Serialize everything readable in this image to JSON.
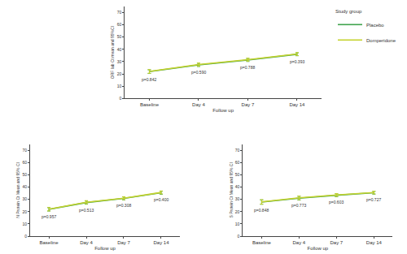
{
  "chart_data": [
    {
      "type": "line",
      "x_label": "Follow up",
      "y_label": "ORF lab Ct mean and 95%CI",
      "categories": [
        "Baseline",
        "Day 4",
        "Day 7",
        "Day 14"
      ],
      "ylim": [
        0,
        75
      ],
      "yticks": [
        0,
        10,
        20,
        30,
        40,
        50,
        60,
        70
      ],
      "legend": "top right",
      "legend_title": "Study group",
      "series": [
        {
          "name": "Placebo",
          "color": "#3fa34d",
          "values": [
            21.8,
            27.3,
            31.3,
            36.0
          ],
          "error": [
            1.5,
            1.3,
            1.2,
            1.2
          ]
        },
        {
          "name": "Domperidone",
          "color": "#c5d22f",
          "values": [
            22.0,
            27.6,
            31.6,
            36.2
          ],
          "error": [
            1.5,
            1.3,
            1.2,
            1.2
          ]
        }
      ],
      "annotations": [
        {
          "category": "Baseline",
          "text": "p=0.842"
        },
        {
          "category": "Day 4",
          "text": "p=0.590"
        },
        {
          "category": "Day 7",
          "text": "p=0.788"
        },
        {
          "category": "Day 14",
          "text": "p=0.393"
        }
      ]
    },
    {
      "type": "line",
      "x_label": "Follow up",
      "y_label": "N Protein Ct Mean and 95% CI",
      "categories": [
        "Baseline",
        "Day 4",
        "Day 7",
        "Day 14"
      ],
      "ylim": [
        0,
        75
      ],
      "yticks": [
        0,
        10,
        20,
        30,
        40,
        50,
        60,
        70
      ],
      "series": [
        {
          "name": "Placebo",
          "color": "#3fa34d",
          "values": [
            21.9,
            27.4,
            30.8,
            35.4
          ],
          "error": [
            1.4,
            1.3,
            1.2,
            1.2
          ]
        },
        {
          "name": "Domperidone",
          "color": "#c5d22f",
          "values": [
            22.0,
            27.7,
            31.0,
            35.7
          ],
          "error": [
            1.4,
            1.3,
            1.2,
            1.2
          ]
        }
      ],
      "annotations": [
        {
          "category": "Baseline",
          "text": "p=0.957"
        },
        {
          "category": "Day 4",
          "text": "p=0.513"
        },
        {
          "category": "Day 7",
          "text": "p=0.308"
        },
        {
          "category": "Day 14",
          "text": "p=0.400"
        }
      ]
    },
    {
      "type": "line",
      "x_label": "Follow up",
      "y_label": "S Protein Ct Mean and 95% CI",
      "categories": [
        "Baseline",
        "Day 4",
        "Day 7",
        "Day 14"
      ],
      "ylim": [
        0,
        75
      ],
      "yticks": [
        0,
        10,
        20,
        30,
        40,
        50,
        60,
        70
      ],
      "series": [
        {
          "name": "Placebo",
          "color": "#3fa34d",
          "values": [
            27.8,
            31.0,
            33.4,
            35.4
          ],
          "error": [
            1.8,
            1.5,
            1.2,
            1.1
          ]
        },
        {
          "name": "Domperidone",
          "color": "#c5d22f",
          "values": [
            28.0,
            31.3,
            33.6,
            35.6
          ],
          "error": [
            1.8,
            1.5,
            1.2,
            1.1
          ]
        }
      ],
      "annotations": [
        {
          "category": "Baseline",
          "text": "p=0.848"
        },
        {
          "category": "Day 4",
          "text": "p=0.773"
        },
        {
          "category": "Day 7",
          "text": "p=0.603"
        },
        {
          "category": "Day 14",
          "text": "p=0.727"
        }
      ]
    }
  ]
}
